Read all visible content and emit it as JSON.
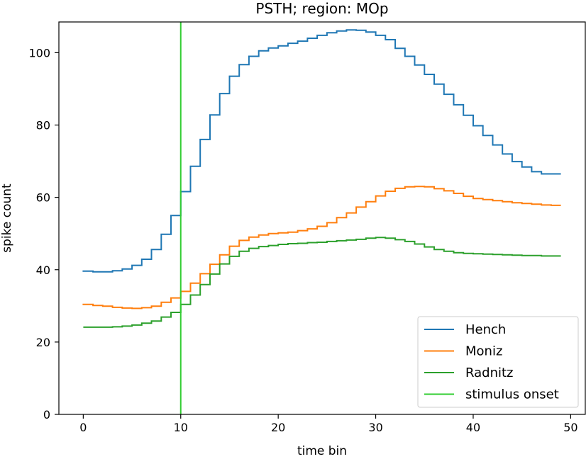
{
  "chart_data": {
    "type": "line",
    "title": "PSTH; region: MOp",
    "xlabel": "time bin",
    "ylabel": "spike count",
    "xlim": [
      -2.5,
      51.5
    ],
    "ylim": [
      0,
      108.5
    ],
    "xticks": [
      0,
      10,
      20,
      30,
      40,
      50
    ],
    "yticks": [
      0,
      20,
      40,
      60,
      80,
      100
    ],
    "grid": false,
    "legend_position": "bottom-right",
    "x": [
      0,
      1,
      2,
      3,
      4,
      5,
      6,
      7,
      8,
      9,
      10,
      11,
      12,
      13,
      14,
      15,
      16,
      17,
      18,
      19,
      20,
      21,
      22,
      23,
      24,
      25,
      26,
      27,
      28,
      29,
      30,
      31,
      32,
      33,
      34,
      35,
      36,
      37,
      38,
      39,
      40,
      41,
      42,
      43,
      44,
      45,
      46,
      47,
      48,
      49
    ],
    "series": [
      {
        "name": "Hench",
        "color": "#1f77b4",
        "values": [
          39.8,
          39.6,
          39.4,
          39.4,
          39.7,
          40.2,
          41.2,
          42.9,
          45.6,
          49.8,
          55.0,
          61.6,
          68.6,
          76.0,
          82.8,
          88.7,
          93.5,
          96.7,
          99.0,
          100.5,
          101.3,
          101.9,
          102.6,
          103.2,
          104.0,
          104.8,
          105.5,
          106.0,
          106.3,
          106.2,
          105.7,
          104.8,
          103.6,
          101.2,
          99.0,
          96.6,
          94.0,
          91.3,
          88.5,
          85.6,
          82.7,
          79.8,
          77.1,
          74.5,
          72.0,
          69.9,
          68.4,
          67.1,
          66.5,
          66.5
        ]
      },
      {
        "name": "Moniz",
        "color": "#ff7f0e",
        "values": [
          30.6,
          30.4,
          30.1,
          29.9,
          29.6,
          29.4,
          29.3,
          29.5,
          29.9,
          31.0,
          32.2,
          34.0,
          36.3,
          38.9,
          41.5,
          44.1,
          46.5,
          48.1,
          49.0,
          49.6,
          50.0,
          50.2,
          50.4,
          50.8,
          51.3,
          52.0,
          53.0,
          54.4,
          55.7,
          57.3,
          58.8,
          60.4,
          61.7,
          62.5,
          62.9,
          63.0,
          62.9,
          62.4,
          61.8,
          61.1,
          60.3,
          59.7,
          59.4,
          59.1,
          58.8,
          58.5,
          58.3,
          58.1,
          57.9,
          57.8
        ]
      },
      {
        "name": "Radnitz",
        "color": "#2ca02c",
        "values": [
          24.1,
          24.1,
          24.1,
          24.1,
          24.2,
          24.4,
          24.7,
          25.2,
          25.8,
          26.9,
          28.2,
          30.4,
          33.0,
          35.9,
          38.8,
          41.6,
          43.7,
          45.1,
          45.9,
          46.4,
          46.7,
          47.0,
          47.2,
          47.3,
          47.5,
          47.6,
          47.8,
          48.0,
          48.2,
          48.4,
          48.7,
          48.9,
          48.7,
          48.3,
          47.8,
          47.1,
          46.3,
          45.6,
          45.1,
          44.7,
          44.5,
          44.4,
          44.3,
          44.2,
          44.1,
          44.0,
          43.9,
          43.9,
          43.8,
          43.8
        ]
      }
    ],
    "vline": {
      "name": "stimulus onset",
      "x": 10,
      "color": "#32cd32"
    }
  }
}
